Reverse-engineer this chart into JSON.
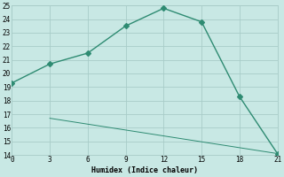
{
  "line1_x": [
    0,
    3,
    6,
    9,
    12,
    15,
    18,
    21
  ],
  "line1_y": [
    19.3,
    20.7,
    21.5,
    23.5,
    24.8,
    23.8,
    18.3,
    14.1
  ],
  "line2_x": [
    3,
    21
  ],
  "line2_y": [
    16.7,
    14.1
  ],
  "line_color": "#2e8b72",
  "bg_color": "#c8e8e4",
  "grid_color": "#a8ccc8",
  "xlabel": "Humidex (Indice chaleur)",
  "xlim": [
    0,
    21
  ],
  "ylim": [
    14,
    25
  ],
  "xticks": [
    0,
    3,
    6,
    9,
    12,
    15,
    18,
    21
  ],
  "yticks": [
    14,
    15,
    16,
    17,
    18,
    19,
    20,
    21,
    22,
    23,
    24,
    25
  ],
  "marker": "D",
  "markersize": 3,
  "linewidth": 1.0
}
